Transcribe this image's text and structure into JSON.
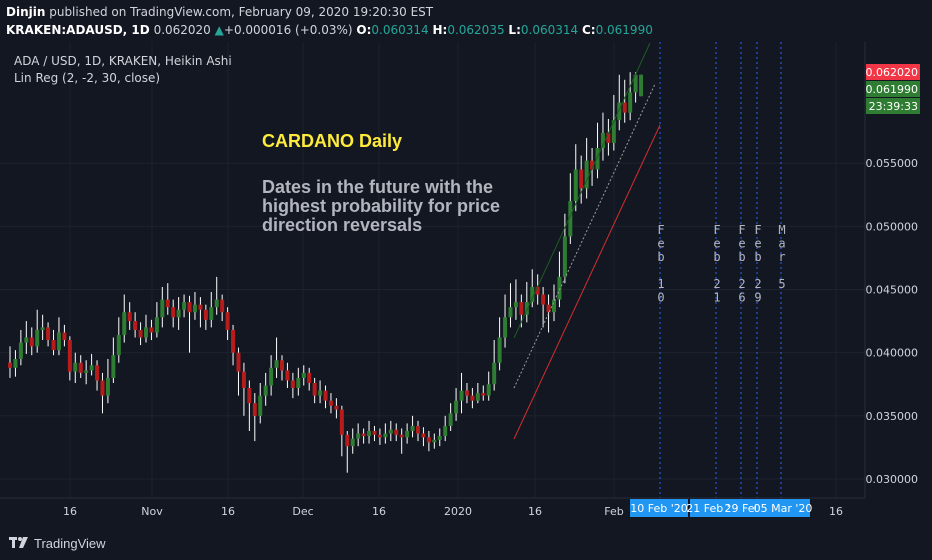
{
  "header": {
    "publisher": "Dinjin",
    "published_text": "published on TradingView.com, February 09, 2020 19:20:30 EST",
    "symbol_interval": "KRAKEN:ADAUSD, 1D",
    "last_price": "0.062020",
    "change_arrow": "▲",
    "change": "+0.000016 (+0.03%)",
    "o_label": "O:",
    "o_value": "0.060314",
    "h_label": "H:",
    "h_value": "0.062035",
    "l_label": "L:",
    "l_value": "0.060314",
    "c_label": "C:",
    "c_value": "0.061990"
  },
  "legend": {
    "series_line": "ADA / USD, 1D, KRAKEN, Heikin Ashi",
    "indicator_line": "Lin Reg (2, -2, 30, close)"
  },
  "annotations": {
    "title": "CARDANO Daily",
    "subtitle_lines": [
      "Dates in the future with the",
      "highest probability for price",
      "direction reversals"
    ],
    "vertical_labels": [
      {
        "date": "10 Feb '20",
        "text": "Feb 10"
      },
      {
        "date": "21 Feb '20",
        "text": "Feb 21"
      },
      {
        "date": "26 Feb '20",
        "text": "Feb 26"
      },
      {
        "date": "29 Feb '20",
        "text": "Feb 29"
      },
      {
        "date": "05 Mar '20",
        "text": "Mar 5"
      }
    ]
  },
  "price_tags": [
    {
      "value": "0.062020",
      "color": "#f23645"
    },
    {
      "value": "0.061990",
      "color": "#2e7d32"
    },
    {
      "value": "23:39:33",
      "color": "#2e7d32"
    }
  ],
  "date_tags": [
    "10 Feb '20",
    "21 Feb '20",
    "29 Feb",
    "05 Mar '20"
  ],
  "footer": {
    "brand": "TradingView"
  },
  "colors": {
    "up": "#2e7d32",
    "down": "#b71c1c",
    "wick": "#ffffff",
    "bg": "#131722",
    "grid": "#1e222d",
    "regline_upper": "#1b5e20",
    "regline_lower": "#d32f2f",
    "marker": "#2962ff",
    "tag_blue": "#2196f3"
  },
  "chart_data": {
    "type": "candlestick",
    "style": "Heikin Ashi",
    "symbol": "ADA / USD",
    "x_ticks": [
      "16",
      "Nov",
      "16",
      "Dec",
      "16",
      "2020",
      "16",
      "Feb",
      "16"
    ],
    "y_ticks": [
      0.03,
      0.035,
      0.04,
      0.045,
      0.05,
      0.055
    ],
    "ylim": [
      0.0285,
      0.0631
    ],
    "last_value": 0.06199,
    "candles": [
      {
        "o": 0.0392,
        "c": 0.0388,
        "h": 0.0405,
        "l": 0.038
      },
      {
        "o": 0.0388,
        "c": 0.0395,
        "h": 0.0402,
        "l": 0.0381
      },
      {
        "o": 0.0395,
        "c": 0.0408,
        "h": 0.0418,
        "l": 0.039
      },
      {
        "o": 0.0408,
        "c": 0.0412,
        "h": 0.0425,
        "l": 0.0399
      },
      {
        "o": 0.0412,
        "c": 0.0405,
        "h": 0.042,
        "l": 0.0398
      },
      {
        "o": 0.0405,
        "c": 0.0418,
        "h": 0.0434,
        "l": 0.04
      },
      {
        "o": 0.0418,
        "c": 0.042,
        "h": 0.043,
        "l": 0.041
      },
      {
        "o": 0.042,
        "c": 0.041,
        "h": 0.0424,
        "l": 0.0405
      },
      {
        "o": 0.041,
        "c": 0.0402,
        "h": 0.0418,
        "l": 0.0398
      },
      {
        "o": 0.0402,
        "c": 0.0416,
        "h": 0.0428,
        "l": 0.0398
      },
      {
        "o": 0.0416,
        "c": 0.041,
        "h": 0.0422,
        "l": 0.0405
      },
      {
        "o": 0.041,
        "c": 0.0385,
        "h": 0.0413,
        "l": 0.0378
      },
      {
        "o": 0.0385,
        "c": 0.0392,
        "h": 0.04,
        "l": 0.0376
      },
      {
        "o": 0.0392,
        "c": 0.0384,
        "h": 0.0398,
        "l": 0.038
      },
      {
        "o": 0.0384,
        "c": 0.0386,
        "h": 0.0394,
        "l": 0.0375
      },
      {
        "o": 0.0386,
        "c": 0.039,
        "h": 0.0399,
        "l": 0.0382
      },
      {
        "o": 0.039,
        "c": 0.0378,
        "h": 0.0394,
        "l": 0.037
      },
      {
        "o": 0.0378,
        "c": 0.0366,
        "h": 0.0384,
        "l": 0.0352
      },
      {
        "o": 0.0366,
        "c": 0.038,
        "h": 0.0395,
        "l": 0.036
      },
      {
        "o": 0.038,
        "c": 0.0398,
        "h": 0.0412,
        "l": 0.0376
      },
      {
        "o": 0.0398,
        "c": 0.0414,
        "h": 0.0428,
        "l": 0.0392
      },
      {
        "o": 0.0414,
        "c": 0.0432,
        "h": 0.0446,
        "l": 0.0408
      },
      {
        "o": 0.0432,
        "c": 0.0425,
        "h": 0.044,
        "l": 0.0418
      },
      {
        "o": 0.0425,
        "c": 0.0418,
        "h": 0.0432,
        "l": 0.0412
      },
      {
        "o": 0.0418,
        "c": 0.0412,
        "h": 0.0424,
        "l": 0.0406
      },
      {
        "o": 0.0412,
        "c": 0.042,
        "h": 0.043,
        "l": 0.0408
      },
      {
        "o": 0.042,
        "c": 0.0416,
        "h": 0.0426,
        "l": 0.041
      },
      {
        "o": 0.0416,
        "c": 0.0428,
        "h": 0.044,
        "l": 0.0412
      },
      {
        "o": 0.0428,
        "c": 0.0442,
        "h": 0.0452,
        "l": 0.042
      },
      {
        "o": 0.0442,
        "c": 0.0436,
        "h": 0.0455,
        "l": 0.043
      },
      {
        "o": 0.0436,
        "c": 0.0428,
        "h": 0.0442,
        "l": 0.042
      },
      {
        "o": 0.0428,
        "c": 0.0434,
        "h": 0.0444,
        "l": 0.0418
      },
      {
        "o": 0.0434,
        "c": 0.044,
        "h": 0.0446,
        "l": 0.0428
      },
      {
        "o": 0.044,
        "c": 0.0432,
        "h": 0.0445,
        "l": 0.04
      },
      {
        "o": 0.0432,
        "c": 0.0438,
        "h": 0.0448,
        "l": 0.0426
      },
      {
        "o": 0.0438,
        "c": 0.0434,
        "h": 0.0444,
        "l": 0.042
      },
      {
        "o": 0.0434,
        "c": 0.0426,
        "h": 0.0438,
        "l": 0.0418
      },
      {
        "o": 0.0426,
        "c": 0.0436,
        "h": 0.0448,
        "l": 0.042
      },
      {
        "o": 0.0436,
        "c": 0.0442,
        "h": 0.046,
        "l": 0.043
      },
      {
        "o": 0.0442,
        "c": 0.0432,
        "h": 0.0446,
        "l": 0.0425
      },
      {
        "o": 0.0432,
        "c": 0.0418,
        "h": 0.0436,
        "l": 0.041
      },
      {
        "o": 0.0418,
        "c": 0.04,
        "h": 0.0422,
        "l": 0.039
      },
      {
        "o": 0.04,
        "c": 0.0385,
        "h": 0.0404,
        "l": 0.0366
      },
      {
        "o": 0.0385,
        "c": 0.0372,
        "h": 0.0392,
        "l": 0.035
      },
      {
        "o": 0.0372,
        "c": 0.036,
        "h": 0.0378,
        "l": 0.0338
      },
      {
        "o": 0.036,
        "c": 0.035,
        "h": 0.0368,
        "l": 0.033
      },
      {
        "o": 0.035,
        "c": 0.0366,
        "h": 0.0376,
        "l": 0.0344
      },
      {
        "o": 0.0366,
        "c": 0.0374,
        "h": 0.0384,
        "l": 0.0358
      },
      {
        "o": 0.0374,
        "c": 0.0388,
        "h": 0.0398,
        "l": 0.0366
      },
      {
        "o": 0.0388,
        "c": 0.0394,
        "h": 0.0412,
        "l": 0.038
      },
      {
        "o": 0.0394,
        "c": 0.0386,
        "h": 0.0398,
        "l": 0.0378
      },
      {
        "o": 0.0386,
        "c": 0.0378,
        "h": 0.0392,
        "l": 0.0372
      },
      {
        "o": 0.0378,
        "c": 0.0372,
        "h": 0.0384,
        "l": 0.0364
      },
      {
        "o": 0.0372,
        "c": 0.038,
        "h": 0.0388,
        "l": 0.0366
      },
      {
        "o": 0.038,
        "c": 0.0384,
        "h": 0.039,
        "l": 0.0374
      },
      {
        "o": 0.0384,
        "c": 0.0376,
        "h": 0.0388,
        "l": 0.037
      },
      {
        "o": 0.0376,
        "c": 0.0366,
        "h": 0.038,
        "l": 0.036
      },
      {
        "o": 0.0366,
        "c": 0.037,
        "h": 0.0378,
        "l": 0.036
      },
      {
        "o": 0.037,
        "c": 0.0362,
        "h": 0.0374,
        "l": 0.0356
      },
      {
        "o": 0.0362,
        "c": 0.0358,
        "h": 0.0368,
        "l": 0.0352
      },
      {
        "o": 0.0358,
        "c": 0.0355,
        "h": 0.0364,
        "l": 0.0348
      },
      {
        "o": 0.0355,
        "c": 0.0335,
        "h": 0.0358,
        "l": 0.0318
      },
      {
        "o": 0.0335,
        "c": 0.0326,
        "h": 0.0338,
        "l": 0.0305
      },
      {
        "o": 0.0326,
        "c": 0.0332,
        "h": 0.034,
        "l": 0.032
      },
      {
        "o": 0.0332,
        "c": 0.0336,
        "h": 0.0344,
        "l": 0.0326
      },
      {
        "o": 0.0336,
        "c": 0.0334,
        "h": 0.034,
        "l": 0.0328
      },
      {
        "o": 0.0334,
        "c": 0.0338,
        "h": 0.0346,
        "l": 0.0328
      },
      {
        "o": 0.0338,
        "c": 0.0335,
        "h": 0.0342,
        "l": 0.033
      },
      {
        "o": 0.0335,
        "c": 0.0333,
        "h": 0.034,
        "l": 0.0327
      },
      {
        "o": 0.0333,
        "c": 0.0336,
        "h": 0.0344,
        "l": 0.0328
      },
      {
        "o": 0.0336,
        "c": 0.0339,
        "h": 0.0346,
        "l": 0.033
      },
      {
        "o": 0.0339,
        "c": 0.0335,
        "h": 0.0344,
        "l": 0.033
      },
      {
        "o": 0.0335,
        "c": 0.0333,
        "h": 0.034,
        "l": 0.032
      },
      {
        "o": 0.0333,
        "c": 0.0338,
        "h": 0.0344,
        "l": 0.0328
      },
      {
        "o": 0.0338,
        "c": 0.0342,
        "h": 0.035,
        "l": 0.0333
      },
      {
        "o": 0.0342,
        "c": 0.0336,
        "h": 0.0346,
        "l": 0.033
      },
      {
        "o": 0.0336,
        "c": 0.0333,
        "h": 0.0341,
        "l": 0.0326
      },
      {
        "o": 0.0333,
        "c": 0.0329,
        "h": 0.0338,
        "l": 0.0322
      },
      {
        "o": 0.0329,
        "c": 0.0331,
        "h": 0.0336,
        "l": 0.0324
      },
      {
        "o": 0.0331,
        "c": 0.0334,
        "h": 0.034,
        "l": 0.0326
      },
      {
        "o": 0.0334,
        "c": 0.0342,
        "h": 0.035,
        "l": 0.033
      },
      {
        "o": 0.0342,
        "c": 0.0352,
        "h": 0.036,
        "l": 0.0338
      },
      {
        "o": 0.0352,
        "c": 0.0362,
        "h": 0.0372,
        "l": 0.0346
      },
      {
        "o": 0.0362,
        "c": 0.037,
        "h": 0.0384,
        "l": 0.0352
      },
      {
        "o": 0.037,
        "c": 0.0366,
        "h": 0.0376,
        "l": 0.036
      },
      {
        "o": 0.0366,
        "c": 0.0362,
        "h": 0.0372,
        "l": 0.0356
      },
      {
        "o": 0.0362,
        "c": 0.0368,
        "h": 0.0376,
        "l": 0.036
      },
      {
        "o": 0.0368,
        "c": 0.0366,
        "h": 0.0374,
        "l": 0.0362
      },
      {
        "o": 0.0366,
        "c": 0.0375,
        "h": 0.0385,
        "l": 0.0362
      },
      {
        "o": 0.0375,
        "c": 0.0392,
        "h": 0.041,
        "l": 0.037
      },
      {
        "o": 0.0392,
        "c": 0.0412,
        "h": 0.0428,
        "l": 0.0386
      },
      {
        "o": 0.0412,
        "c": 0.0428,
        "h": 0.0446,
        "l": 0.0404
      },
      {
        "o": 0.0428,
        "c": 0.0436,
        "h": 0.0455,
        "l": 0.042
      },
      {
        "o": 0.0436,
        "c": 0.044,
        "h": 0.0458,
        "l": 0.0426
      },
      {
        "o": 0.044,
        "c": 0.043,
        "h": 0.0446,
        "l": 0.042
      },
      {
        "o": 0.043,
        "c": 0.044,
        "h": 0.0456,
        "l": 0.0424
      },
      {
        "o": 0.044,
        "c": 0.0452,
        "h": 0.0466,
        "l": 0.0436
      },
      {
        "o": 0.0452,
        "c": 0.0446,
        "h": 0.0462,
        "l": 0.0438
      },
      {
        "o": 0.0446,
        "c": 0.0438,
        "h": 0.0452,
        "l": 0.042
      },
      {
        "o": 0.0438,
        "c": 0.0432,
        "h": 0.0446,
        "l": 0.0416
      },
      {
        "o": 0.0432,
        "c": 0.0442,
        "h": 0.0454,
        "l": 0.0425
      },
      {
        "o": 0.0442,
        "c": 0.046,
        "h": 0.048,
        "l": 0.0436
      },
      {
        "o": 0.046,
        "c": 0.0492,
        "h": 0.051,
        "l": 0.0455
      },
      {
        "o": 0.0492,
        "c": 0.052,
        "h": 0.0542,
        "l": 0.0486
      },
      {
        "o": 0.052,
        "c": 0.0545,
        "h": 0.0565,
        "l": 0.0512
      },
      {
        "o": 0.0545,
        "c": 0.053,
        "h": 0.0556,
        "l": 0.0518
      },
      {
        "o": 0.053,
        "c": 0.0552,
        "h": 0.057,
        "l": 0.0522
      },
      {
        "o": 0.0552,
        "c": 0.0545,
        "h": 0.0562,
        "l": 0.0532
      },
      {
        "o": 0.0545,
        "c": 0.0562,
        "h": 0.0582,
        "l": 0.0538
      },
      {
        "o": 0.0562,
        "c": 0.0574,
        "h": 0.059,
        "l": 0.0552
      },
      {
        "o": 0.0574,
        "c": 0.0566,
        "h": 0.0585,
        "l": 0.0556
      },
      {
        "o": 0.0566,
        "c": 0.0584,
        "h": 0.0604,
        "l": 0.056
      },
      {
        "o": 0.0584,
        "c": 0.0598,
        "h": 0.062,
        "l": 0.0576
      },
      {
        "o": 0.0598,
        "c": 0.059,
        "h": 0.0616,
        "l": 0.0582
      },
      {
        "o": 0.059,
        "c": 0.0606,
        "h": 0.0622,
        "l": 0.0584
      },
      {
        "o": 0.0606,
        "c": 0.062,
        "h": 0.0622,
        "l": 0.0598
      },
      {
        "o": 0.0603,
        "c": 0.062,
        "h": 0.062,
        "l": 0.0603
      }
    ]
  }
}
